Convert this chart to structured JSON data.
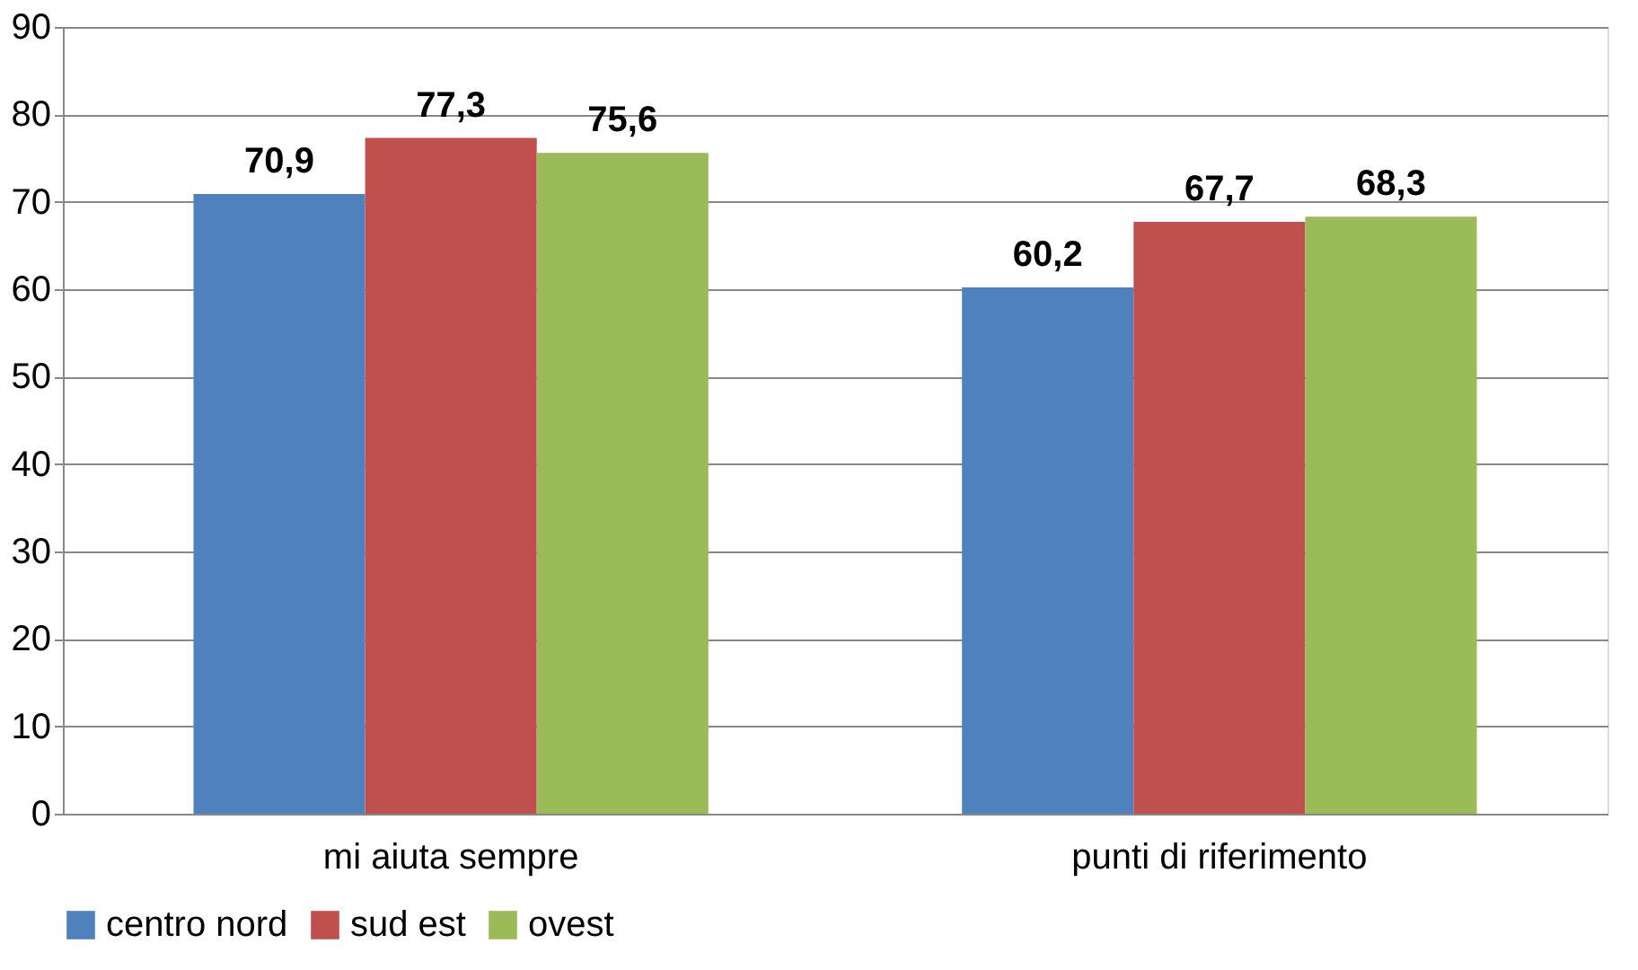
{
  "chart_data": {
    "type": "bar",
    "categories": [
      "mi aiuta sempre",
      "punti di riferimento"
    ],
    "series": [
      {
        "name": "centro nord",
        "color": "#4f81bd",
        "values": [
          70.9,
          60.2
        ],
        "value_labels": [
          "70,9",
          "60,2"
        ]
      },
      {
        "name": "sud est",
        "color": "#c0504d",
        "values": [
          77.3,
          67.7
        ],
        "value_labels": [
          "77,3",
          "67,7"
        ]
      },
      {
        "name": "ovest",
        "color": "#9bbb59",
        "values": [
          75.6,
          68.3
        ],
        "value_labels": [
          "75,6",
          "68,3"
        ]
      }
    ],
    "ylim": [
      0,
      90
    ],
    "yticks": [
      0,
      10,
      20,
      30,
      40,
      50,
      60,
      70,
      80,
      90
    ],
    "grid": "y",
    "legend": "bottom"
  }
}
